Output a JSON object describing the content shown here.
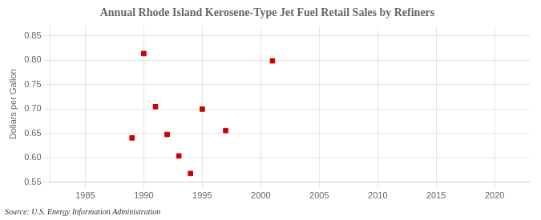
{
  "chart_data": {
    "type": "scatter",
    "title": "Annual Rhode Island Kerosene-Type Jet Fuel Retail Sales by Refiners",
    "ylabel": "Dollars per Gallon",
    "annotations": [
      "Source: U.S. Energy Information Administration"
    ],
    "x": [
      1989,
      1990,
      1991,
      1992,
      1993,
      1994,
      1995,
      1997,
      2001
    ],
    "values": [
      0.641,
      0.814,
      0.705,
      0.648,
      0.604,
      0.568,
      0.7,
      0.656,
      0.799
    ],
    "color": "#cc0000",
    "marker": "square",
    "xlim": [
      1982,
      2023
    ],
    "xticks": [
      1985,
      1990,
      1995,
      2000,
      2005,
      2010,
      2015,
      2020
    ],
    "ylim": [
      0.55,
      0.87
    ],
    "yticks": [
      0.55,
      {
        "value": 0.6,
        "label": "0.60"
      },
      0.65,
      {
        "value": 0.7,
        "label": "0.70"
      },
      0.75,
      {
        "value": 0.8,
        "label": "0.80"
      },
      0.85
    ],
    "grid": true
  }
}
